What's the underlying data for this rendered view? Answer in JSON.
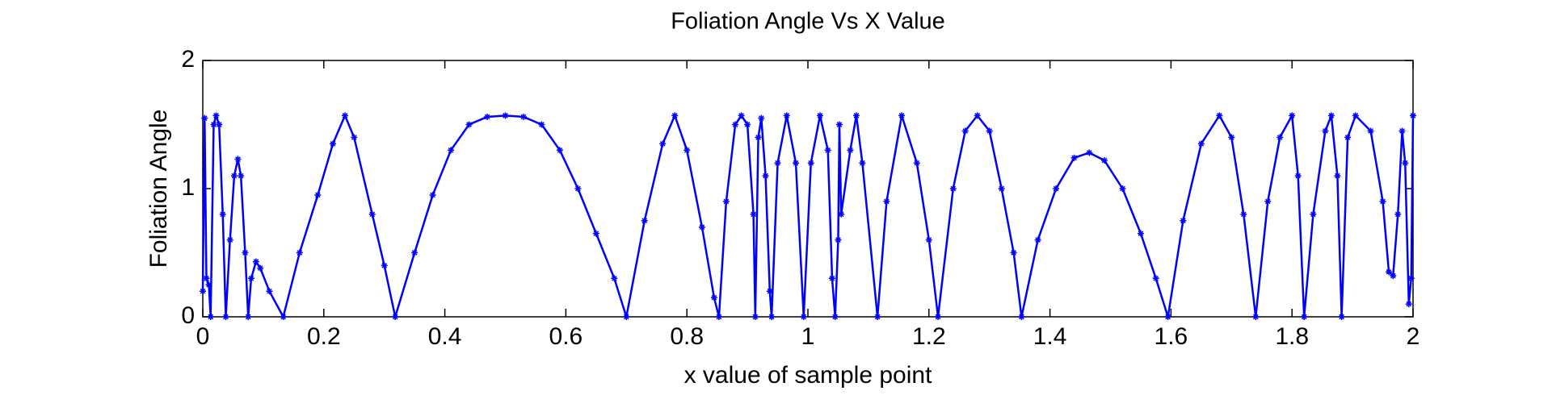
{
  "chart_data": {
    "type": "line",
    "title": "Foliation Angle Vs X Value",
    "x_label": "x value of sample point",
    "y_label": "Foliation Angle",
    "xlim": [
      0,
      2
    ],
    "ylim": [
      0,
      2
    ],
    "xticks": [
      0,
      0.2,
      0.4,
      0.6,
      0.8,
      1,
      1.2,
      1.4,
      1.6,
      1.8,
      2
    ],
    "yticks": [
      0,
      1,
      2
    ],
    "grid": false,
    "series": [
      {
        "color": "#0000ff",
        "x": [
          0.0,
          0.003,
          0.006,
          0.01,
          0.013,
          0.018,
          0.022,
          0.027,
          0.033,
          0.038,
          0.045,
          0.052,
          0.058,
          0.063,
          0.07,
          0.075,
          0.08,
          0.088,
          0.095,
          0.11,
          0.133,
          0.16,
          0.19,
          0.215,
          0.235,
          0.25,
          0.28,
          0.3,
          0.318,
          0.35,
          0.38,
          0.41,
          0.44,
          0.47,
          0.5,
          0.53,
          0.56,
          0.59,
          0.62,
          0.65,
          0.68,
          0.7,
          0.73,
          0.76,
          0.78,
          0.8,
          0.825,
          0.845,
          0.853,
          0.865,
          0.88,
          0.89,
          0.9,
          0.91,
          0.913,
          0.918,
          0.923,
          0.93,
          0.937,
          0.94,
          0.95,
          0.965,
          0.98,
          0.993,
          1.005,
          1.02,
          1.033,
          1.04,
          1.045,
          1.05,
          1.052,
          1.055,
          1.07,
          1.08,
          1.09,
          1.115,
          1.13,
          1.155,
          1.18,
          1.2,
          1.215,
          1.24,
          1.26,
          1.28,
          1.3,
          1.32,
          1.34,
          1.353,
          1.38,
          1.41,
          1.44,
          1.465,
          1.49,
          1.52,
          1.55,
          1.575,
          1.595,
          1.62,
          1.65,
          1.68,
          1.7,
          1.72,
          1.74,
          1.76,
          1.78,
          1.8,
          1.81,
          1.82,
          1.835,
          1.855,
          1.865,
          1.875,
          1.882,
          1.892,
          1.905,
          1.93,
          1.95,
          1.96,
          1.967,
          1.975,
          1.982,
          1.987,
          1.993,
          1.997,
          2.0
        ],
        "values": [
          0.2,
          1.55,
          0.3,
          0.25,
          0,
          1.5,
          1.57,
          1.5,
          0.8,
          0,
          0.6,
          1.1,
          1.23,
          1.1,
          0.5,
          0,
          0.3,
          0.43,
          0.38,
          0.2,
          0,
          0.5,
          0.95,
          1.35,
          1.57,
          1.4,
          0.8,
          0.4,
          0,
          0.5,
          0.95,
          1.3,
          1.5,
          1.56,
          1.57,
          1.56,
          1.5,
          1.3,
          1.0,
          0.65,
          0.3,
          0,
          0.75,
          1.35,
          1.57,
          1.3,
          0.7,
          0.15,
          0,
          0.9,
          1.5,
          1.57,
          1.5,
          0.8,
          0,
          1.4,
          1.55,
          1.1,
          0.2,
          0,
          1.2,
          1.57,
          1.2,
          0,
          1.2,
          1.57,
          1.3,
          0.3,
          0,
          0.6,
          1.5,
          0.8,
          1.3,
          1.57,
          1.2,
          0,
          0.9,
          1.57,
          1.2,
          0.6,
          0,
          1.0,
          1.45,
          1.57,
          1.45,
          1.0,
          0.5,
          0,
          0.6,
          1.0,
          1.24,
          1.28,
          1.22,
          1.0,
          0.65,
          0.3,
          0,
          0.75,
          1.35,
          1.57,
          1.4,
          0.8,
          0,
          0.9,
          1.4,
          1.57,
          1.1,
          0,
          0.8,
          1.45,
          1.57,
          1.1,
          0,
          1.4,
          1.57,
          1.45,
          0.9,
          0.35,
          0.32,
          0.8,
          1.45,
          1.2,
          0.1,
          0.3,
          1.57
        ]
      }
    ]
  }
}
